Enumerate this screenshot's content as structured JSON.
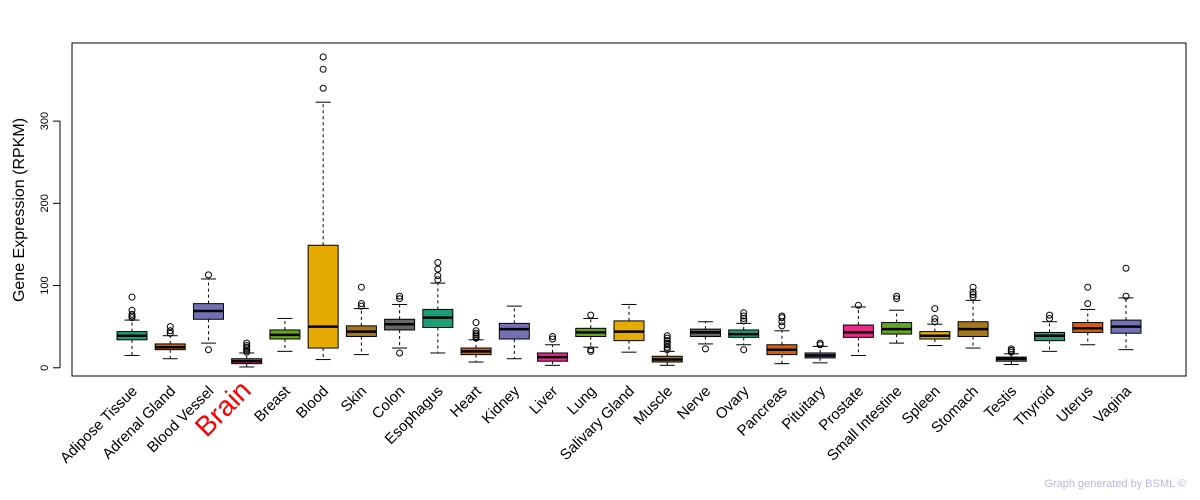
{
  "chart_data": {
    "type": "boxplot",
    "ylabel": "Gene Expression (RPKM)",
    "xlabel": "",
    "ylim": [
      -10,
      395
    ],
    "yticks": [
      0,
      100,
      200,
      300
    ],
    "highlight": {
      "category": "Brain",
      "color": "#ff0000"
    },
    "categories": [
      "Adipose Tissue",
      "Adrenal Gland",
      "Blood Vessel",
      "Brain",
      "Breast",
      "Blood",
      "Skin",
      "Colon",
      "Esophagus",
      "Heart",
      "Kidney",
      "Liver",
      "Lung",
      "Salivary Gland",
      "Muscle",
      "Nerve",
      "Ovary",
      "Pancreas",
      "Pituitary",
      "Prostate",
      "Small Intestine",
      "Spleen",
      "Stomach",
      "Testis",
      "Thyroid",
      "Uterus",
      "Vagina"
    ],
    "boxes": [
      {
        "name": "Adipose Tissue",
        "color": "#1b9e77",
        "whisker_low": 15,
        "q1": 34,
        "median": 39,
        "q3": 44,
        "whisker_high": 58,
        "outliers": [
          61,
          63,
          65,
          70,
          86
        ]
      },
      {
        "name": "Adrenal Gland",
        "color": "#d95f02",
        "whisker_low": 11,
        "q1": 22,
        "median": 25,
        "q3": 29,
        "whisker_high": 39,
        "outliers": [
          42,
          45,
          50
        ]
      },
      {
        "name": "Blood Vessel",
        "color": "#7570b3",
        "whisker_low": 30,
        "q1": 59,
        "median": 69,
        "q3": 78,
        "whisker_high": 108,
        "outliers": [
          22,
          113
        ]
      },
      {
        "name": "Brain",
        "color": "#e7298a",
        "whisker_low": 1,
        "q1": 5,
        "median": 8,
        "q3": 11,
        "whisker_high": 18,
        "outliers": [
          19,
          21,
          23,
          25,
          27,
          30
        ]
      },
      {
        "name": "Breast",
        "color": "#66a61e",
        "whisker_low": 20,
        "q1": 35,
        "median": 40,
        "q3": 46,
        "whisker_high": 60,
        "outliers": []
      },
      {
        "name": "Blood",
        "color": "#e6ab02",
        "whisker_low": 10,
        "q1": 24,
        "median": 50,
        "q3": 149,
        "whisker_high": 323,
        "outliers": [
          340,
          363,
          378
        ]
      },
      {
        "name": "Skin",
        "color": "#a6761d",
        "whisker_low": 16,
        "q1": 38,
        "median": 44,
        "q3": 51,
        "whisker_high": 72,
        "outliers": [
          75,
          78,
          98
        ]
      },
      {
        "name": "Colon",
        "color": "#666666",
        "whisker_low": 24,
        "q1": 46,
        "median": 53,
        "q3": 59,
        "whisker_high": 77,
        "outliers": [
          18,
          84,
          87
        ]
      },
      {
        "name": "Esophagus",
        "color": "#1b9e77",
        "whisker_low": 18,
        "q1": 49,
        "median": 61,
        "q3": 71,
        "whisker_high": 103,
        "outliers": [
          107,
          112,
          120,
          128
        ]
      },
      {
        "name": "Heart",
        "color": "#d95f02",
        "whisker_low": 7,
        "q1": 16,
        "median": 20,
        "q3": 24,
        "whisker_high": 34,
        "outliers": [
          36,
          38,
          40,
          42,
          45,
          55
        ]
      },
      {
        "name": "Kidney",
        "color": "#7570b3",
        "whisker_low": 11,
        "q1": 35,
        "median": 47,
        "q3": 54,
        "whisker_high": 75,
        "outliers": []
      },
      {
        "name": "Liver",
        "color": "#e7298a",
        "whisker_low": 3,
        "q1": 8,
        "median": 13,
        "q3": 18,
        "whisker_high": 28,
        "outliers": [
          35,
          38
        ]
      },
      {
        "name": "Lung",
        "color": "#66a61e",
        "whisker_low": 25,
        "q1": 38,
        "median": 43,
        "q3": 48,
        "whisker_high": 60,
        "outliers": [
          20,
          22,
          64
        ]
      },
      {
        "name": "Salivary Gland",
        "color": "#e6ab02",
        "whisker_low": 19,
        "q1": 33,
        "median": 44,
        "q3": 57,
        "whisker_high": 77,
        "outliers": []
      },
      {
        "name": "Muscle",
        "color": "#a6761d",
        "whisker_low": 3,
        "q1": 7,
        "median": 10,
        "q3": 14,
        "whisker_high": 20,
        "outliers": [
          22,
          25,
          28,
          30,
          33,
          36,
          39
        ]
      },
      {
        "name": "Nerve",
        "color": "#666666",
        "whisker_low": 29,
        "q1": 38,
        "median": 43,
        "q3": 47,
        "whisker_high": 56,
        "outliers": [
          23
        ]
      },
      {
        "name": "Ovary",
        "color": "#1b9e77",
        "whisker_low": 28,
        "q1": 37,
        "median": 41,
        "q3": 46,
        "whisker_high": 54,
        "outliers": [
          22,
          57,
          60,
          63,
          67
        ]
      },
      {
        "name": "Pancreas",
        "color": "#d95f02",
        "whisker_low": 5,
        "q1": 16,
        "median": 22,
        "q3": 28,
        "whisker_high": 45,
        "outliers": [
          51,
          56,
          61,
          63
        ]
      },
      {
        "name": "Pituitary",
        "color": "#7570b3",
        "whisker_low": 6,
        "q1": 12,
        "median": 15,
        "q3": 18,
        "whisker_high": 26,
        "outliers": [
          28,
          30
        ]
      },
      {
        "name": "Prostate",
        "color": "#e7298a",
        "whisker_low": 15,
        "q1": 37,
        "median": 43,
        "q3": 52,
        "whisker_high": 74,
        "outliers": [
          76
        ]
      },
      {
        "name": "Small Intestine",
        "color": "#66a61e",
        "whisker_low": 30,
        "q1": 41,
        "median": 47,
        "q3": 55,
        "whisker_high": 70,
        "outliers": [
          84,
          87
        ]
      },
      {
        "name": "Spleen",
        "color": "#e6ab02",
        "whisker_low": 27,
        "q1": 35,
        "median": 39,
        "q3": 44,
        "whisker_high": 53,
        "outliers": [
          56,
          60,
          72
        ]
      },
      {
        "name": "Stomach",
        "color": "#a6761d",
        "whisker_low": 24,
        "q1": 38,
        "median": 47,
        "q3": 56,
        "whisker_high": 82,
        "outliers": [
          86,
          89,
          92,
          98
        ]
      },
      {
        "name": "Testis",
        "color": "#666666",
        "whisker_low": 4,
        "q1": 8,
        "median": 11,
        "q3": 13,
        "whisker_high": 17,
        "outliers": [
          19,
          21,
          23
        ]
      },
      {
        "name": "Thyroid",
        "color": "#1b9e77",
        "whisker_low": 20,
        "q1": 33,
        "median": 39,
        "q3": 43,
        "whisker_high": 56,
        "outliers": [
          60,
          64
        ]
      },
      {
        "name": "Uterus",
        "color": "#d95f02",
        "whisker_low": 28,
        "q1": 43,
        "median": 48,
        "q3": 55,
        "whisker_high": 71,
        "outliers": [
          78,
          98
        ]
      },
      {
        "name": "Vagina",
        "color": "#7570b3",
        "whisker_low": 22,
        "q1": 42,
        "median": 50,
        "q3": 58,
        "whisker_high": 85,
        "outliers": [
          87,
          121
        ]
      }
    ]
  },
  "footer": {
    "credit": "Graph generated by BSML ©"
  }
}
